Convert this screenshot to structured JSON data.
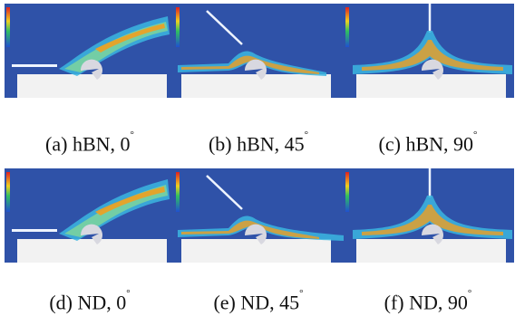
{
  "figure": {
    "panels": [
      {
        "id": "a",
        "material": "hBN",
        "angle": 0,
        "caption": "(a) hBN, 0",
        "deg": "°"
      },
      {
        "id": "b",
        "material": "hBN",
        "angle": 45,
        "caption": "(b) hBN, 45",
        "deg": "°"
      },
      {
        "id": "c",
        "material": "hBN",
        "angle": 90,
        "caption": "(c) hBN, 90",
        "deg": "°"
      },
      {
        "id": "d",
        "material": "ND",
        "angle": 0,
        "caption": "(d) ND, 0",
        "deg": "°"
      },
      {
        "id": "e",
        "material": "ND",
        "angle": 45,
        "caption": "(e) ND, 45",
        "deg": "°"
      },
      {
        "id": "f",
        "material": "ND",
        "angle": 90,
        "caption": "(f) ND, 90",
        "deg": "°"
      }
    ],
    "colors": {
      "background": "#2f52a8",
      "workpiece": "#f2f2f2",
      "tool": "#d8d8e0",
      "stream_core": "#f0a020",
      "stream_mid": "#7ad3a0",
      "stream_outer": "#3bb6e0"
    }
  }
}
